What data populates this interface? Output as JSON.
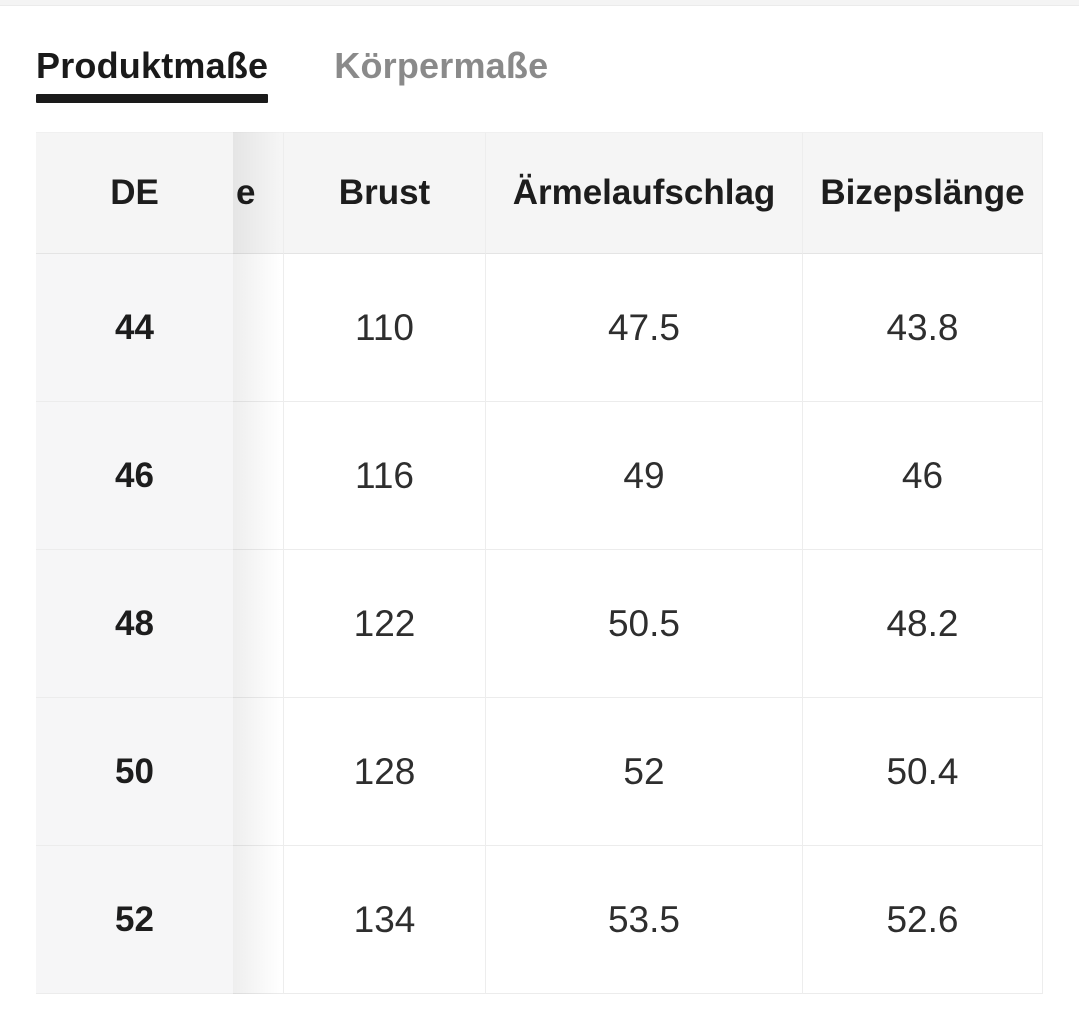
{
  "tabs": [
    {
      "label": "Produktmaße",
      "active": true
    },
    {
      "label": "Körpermaße",
      "active": false
    }
  ],
  "table": {
    "columns": [
      {
        "label": "DE"
      },
      {
        "label": "e"
      },
      {
        "label": "Brust"
      },
      {
        "label": "Ärmelaufschlag"
      },
      {
        "label": "Bizepslänge"
      }
    ],
    "rows": [
      {
        "cells": [
          "44",
          "",
          "110",
          "47.5",
          "43.8"
        ]
      },
      {
        "cells": [
          "46",
          "",
          "116",
          "49",
          "46"
        ]
      },
      {
        "cells": [
          "48",
          "",
          "122",
          "50.5",
          "48.2"
        ]
      },
      {
        "cells": [
          "50",
          "",
          "128",
          "52",
          "50.4"
        ]
      },
      {
        "cells": [
          "52",
          "",
          "134",
          "53.5",
          "52.6"
        ]
      }
    ]
  },
  "colors": {
    "active_tab_text": "#1a1a1a",
    "active_tab_underline": "#1a1a1a",
    "inactive_tab_text": "#8a8a8a",
    "header_background": "#f5f5f5",
    "sticky_column_background": "#f6f6f7",
    "row_border": "#ececec"
  }
}
